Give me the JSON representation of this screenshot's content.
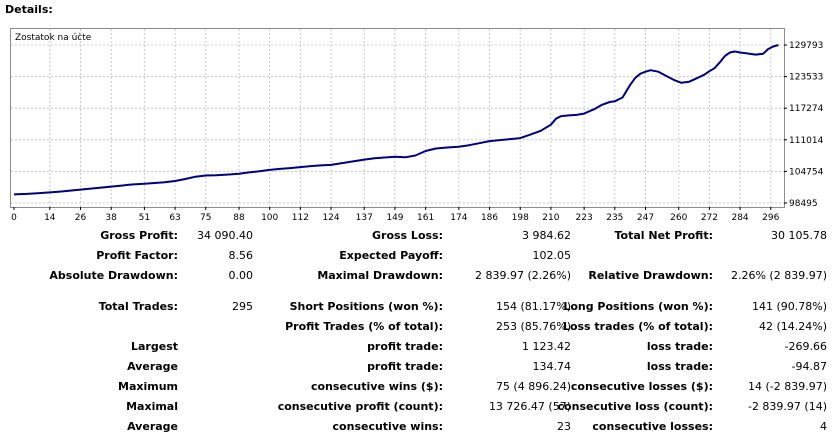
{
  "title": "Details:",
  "chart": {
    "caption": "Zostatok na účte",
    "line_color": "#00007b"
  },
  "chart_data": {
    "type": "line",
    "title": "Zostatok na účte",
    "x_ticks": [
      "0",
      "14",
      "26",
      "38",
      "51",
      "63",
      "75",
      "88",
      "100",
      "112",
      "124",
      "137",
      "149",
      "161",
      "174",
      "186",
      "198",
      "210",
      "223",
      "235",
      "247",
      "260",
      "272",
      "284",
      "296"
    ],
    "y_ticks": [
      "129793",
      "123533",
      "117274",
      "111014",
      "104754",
      "98495"
    ],
    "ylim": [
      98495,
      129793
    ],
    "xlim": [
      0,
      300
    ],
    "grid": true,
    "series": [
      {
        "x": [
          0,
          5,
          10,
          14,
          18,
          22,
          26,
          30,
          34,
          38,
          42,
          46,
          51,
          55,
          59,
          63,
          67,
          71,
          75,
          79,
          84,
          88,
          92,
          96,
          100,
          104,
          108,
          112,
          116,
          120,
          124,
          128,
          132,
          137,
          141,
          145,
          149,
          153,
          157,
          161,
          165,
          170,
          174,
          178,
          182,
          186,
          190,
          194,
          198,
          202,
          206,
          210,
          212,
          214,
          217,
          220,
          223,
          227,
          230,
          233,
          235,
          238,
          241,
          243,
          245,
          247,
          249,
          252,
          255,
          258,
          261,
          264,
          267,
          270,
          272,
          274,
          276,
          278,
          280,
          282,
          284,
          287,
          290,
          293,
          295,
          297,
          299
        ],
        "values": [
          100200,
          100300,
          100450,
          100600,
          100750,
          100950,
          101150,
          101350,
          101550,
          101750,
          101950,
          102150,
          102300,
          102450,
          102600,
          102850,
          103250,
          103700,
          103950,
          104000,
          104150,
          104300,
          104550,
          104800,
          105050,
          105250,
          105400,
          105600,
          105800,
          105950,
          106050,
          106350,
          106700,
          107100,
          107350,
          107500,
          107650,
          107550,
          107900,
          108800,
          109300,
          109500,
          109650,
          109950,
          110350,
          110750,
          110950,
          111150,
          111350,
          112050,
          112800,
          114000,
          115200,
          115700,
          115850,
          115950,
          116200,
          117100,
          117950,
          118500,
          118650,
          119400,
          121900,
          123300,
          124100,
          124500,
          124800,
          124500,
          123700,
          122900,
          122300,
          122500,
          123200,
          123900,
          124600,
          125200,
          126300,
          127600,
          128300,
          128500,
          128300,
          128100,
          127900,
          128050,
          129000,
          129500,
          129800
        ]
      }
    ]
  },
  "stats": {
    "r1": {
      "l1": "Gross Profit:",
      "v1": "34 090.40",
      "l2": "Gross Loss:",
      "v2": "3 984.62",
      "l3": "Total Net Profit:",
      "v3": "30 105.78"
    },
    "r2": {
      "l1": "Profit Factor:",
      "v1": "8.56",
      "l2": "Expected Payoff:",
      "v2": "102.05"
    },
    "r3": {
      "l1": "Absolute Drawdown:",
      "v1": "0.00",
      "l2": "Maximal Drawdown:",
      "v2": "2 839.97 (2.26%)",
      "l3": "Relative Drawdown:",
      "v3": "2.26% (2 839.97)"
    },
    "r4": {
      "l1": "Total Trades:",
      "v1": "295",
      "l2": "Short Positions (won %):",
      "v2": "154 (81.17%)",
      "l3": "Long Positions (won %):",
      "v3": "141 (90.78%)"
    },
    "r5": {
      "l2": "Profit Trades (% of total):",
      "v2": "253 (85.76%)",
      "l3": "Loss trades (% of total):",
      "v3": "42 (14.24%)"
    },
    "r6": {
      "l1": "Largest",
      "l2": "profit trade:",
      "v2": "1 123.42",
      "l3": "loss trade:",
      "v3": "-269.66"
    },
    "r7": {
      "l1": "Average",
      "l2": "profit trade:",
      "v2": "134.74",
      "l3": "loss trade:",
      "v3": "-94.87"
    },
    "r8": {
      "l1": "Maximum",
      "l2": "consecutive wins ($):",
      "v2": "75 (4 896.24)",
      "l3": "consecutive losses ($):",
      "v3": "14 (-2 839.97)"
    },
    "r9": {
      "l1": "Maximal",
      "l2": "consecutive profit (count):",
      "v2": "13 726.47 (57)",
      "l3": "consecutive loss (count):",
      "v3": "-2 839.97 (14)"
    },
    "r10": {
      "l1": "Average",
      "l2": "consecutive wins:",
      "v2": "23",
      "l3": "consecutive losses:",
      "v3": "4"
    }
  }
}
